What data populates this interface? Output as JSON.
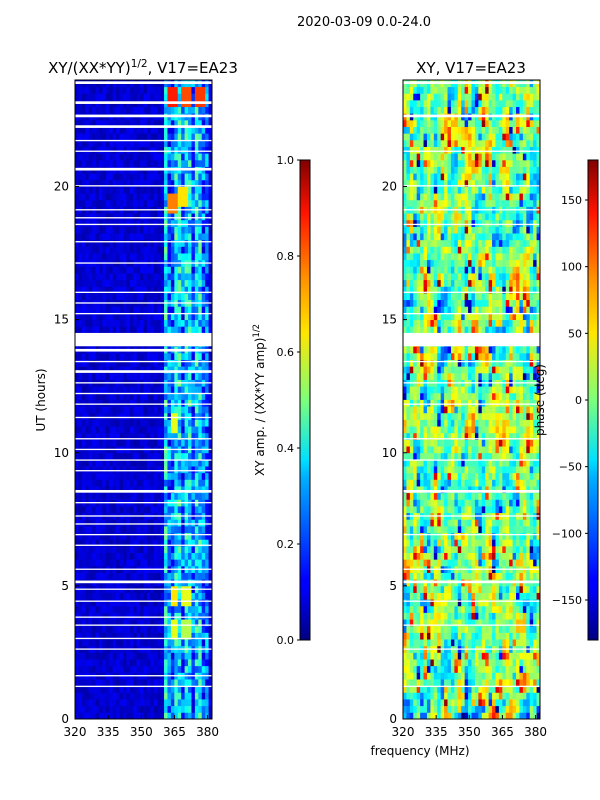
{
  "suptitle": "2020-03-09 0.0-24.0",
  "shared_xlabel": "frequency (MHz)",
  "chart_data": [
    {
      "type": "heatmap",
      "title": "XY/(XX*YY)^1/2, V17=EA23",
      "xlabel": "",
      "ylabel": "UT (hours)",
      "xlim": [
        320,
        382
      ],
      "ylim": [
        0,
        24
      ],
      "xticks": [
        "320",
        "335",
        "350",
        "365",
        "380"
      ],
      "yticks": [
        "0",
        "5",
        "10",
        "15",
        "20"
      ],
      "colormap": "jet",
      "colorbar": {
        "label": "XY amp. / (XX*YY amp)^1/2",
        "range": [
          0.0,
          1.0
        ],
        "ticks": [
          "0.0",
          "0.2",
          "0.4",
          "0.6",
          "0.8",
          "1.0"
        ]
      },
      "background_level": 0.08,
      "active_band_mhz": [
        360,
        380
      ],
      "active_band_level": 0.35,
      "hot_spots": [
        {
          "x": 364,
          "y": 23.4,
          "v": 0.85
        },
        {
          "x": 370,
          "y": 23.4,
          "v": 0.8
        },
        {
          "x": 377,
          "y": 23.4,
          "v": 0.82
        },
        {
          "x": 364,
          "y": 19.3,
          "v": 0.75
        },
        {
          "x": 369,
          "y": 19.6,
          "v": 0.65
        },
        {
          "x": 365,
          "y": 11.1,
          "v": 0.6
        },
        {
          "x": 365,
          "y": 4.6,
          "v": 0.65
        },
        {
          "x": 371,
          "y": 4.6,
          "v": 0.6
        },
        {
          "x": 365,
          "y": 3.4,
          "v": 0.6
        },
        {
          "x": 370,
          "y": 3.4,
          "v": 0.55
        }
      ],
      "gaps_hours": [
        [
          14.0,
          14.5
        ],
        [
          23.85,
          23.95
        ],
        [
          23.1,
          23.2
        ],
        [
          22.6,
          22.7
        ],
        [
          22.2,
          22.3
        ],
        [
          21.7,
          21.75
        ],
        [
          21.3,
          21.35
        ],
        [
          20.6,
          20.7
        ],
        [
          20.0,
          20.05
        ],
        [
          19.1,
          19.15
        ],
        [
          18.8,
          18.85
        ],
        [
          18.55,
          18.6
        ],
        [
          17.9,
          17.95
        ],
        [
          17.1,
          17.15
        ],
        [
          16.0,
          16.05
        ],
        [
          15.6,
          15.65
        ],
        [
          15.2,
          15.25
        ],
        [
          13.8,
          13.9
        ],
        [
          13.4,
          13.45
        ],
        [
          13.0,
          13.1
        ],
        [
          12.6,
          12.65
        ],
        [
          12.2,
          12.25
        ],
        [
          11.8,
          11.85
        ],
        [
          11.3,
          11.35
        ],
        [
          10.5,
          10.55
        ],
        [
          10.1,
          10.15
        ],
        [
          9.7,
          9.75
        ],
        [
          9.3,
          9.35
        ],
        [
          8.5,
          8.6
        ],
        [
          8.1,
          8.15
        ],
        [
          7.6,
          7.65
        ],
        [
          7.3,
          7.35
        ],
        [
          6.9,
          6.95
        ],
        [
          6.5,
          6.55
        ],
        [
          5.6,
          5.65
        ],
        [
          5.1,
          5.2
        ],
        [
          4.85,
          4.9
        ],
        [
          4.4,
          4.45
        ],
        [
          3.8,
          3.85
        ],
        [
          3.5,
          3.55
        ],
        [
          3.0,
          3.05
        ],
        [
          2.6,
          2.65
        ],
        [
          1.6,
          1.65
        ],
        [
          1.2,
          1.25
        ]
      ]
    },
    {
      "type": "heatmap",
      "title": "XY, V17=EA23",
      "xlabel": "frequency (MHz)",
      "ylabel": "",
      "xlim": [
        320,
        382
      ],
      "ylim": [
        0,
        24
      ],
      "xticks": [
        "320",
        "335",
        "350",
        "365",
        "380"
      ],
      "yticks": [
        "0",
        "5",
        "10",
        "15",
        "20"
      ],
      "colormap": "jet",
      "colorbar": {
        "label": "phase (deg)",
        "range": [
          -180,
          180
        ],
        "ticks": [
          "−150",
          "−100",
          "−50",
          "0",
          "50",
          "100",
          "150"
        ]
      },
      "pattern": "noisy phase, all values −180 to 180",
      "gaps_hours": [
        [
          14.0,
          14.5
        ],
        [
          23.85,
          23.95
        ],
        [
          22.6,
          22.7
        ],
        [
          21.3,
          21.35
        ],
        [
          20.0,
          20.05
        ],
        [
          19.1,
          19.15
        ],
        [
          18.55,
          18.6
        ],
        [
          16.0,
          16.05
        ],
        [
          15.2,
          15.25
        ],
        [
          13.4,
          13.45
        ],
        [
          12.6,
          12.65
        ],
        [
          11.8,
          11.85
        ],
        [
          10.5,
          10.55
        ],
        [
          9.7,
          9.75
        ],
        [
          8.5,
          8.6
        ],
        [
          7.6,
          7.65
        ],
        [
          6.9,
          6.95
        ],
        [
          5.6,
          5.65
        ],
        [
          5.1,
          5.2
        ],
        [
          4.4,
          4.45
        ],
        [
          3.5,
          3.55
        ],
        [
          2.6,
          2.65
        ],
        [
          1.2,
          1.25
        ]
      ]
    }
  ]
}
